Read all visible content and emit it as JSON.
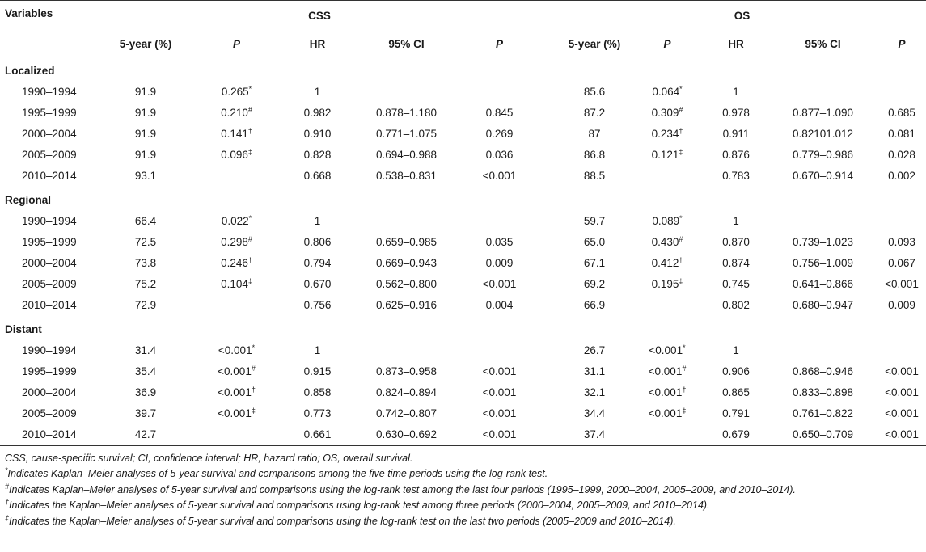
{
  "headers": {
    "variables": "Variables",
    "css_group": "CSS",
    "os_group": "OS",
    "five_year": "5-year (%)",
    "p": "P",
    "hr": "HR",
    "ci": "95% CI"
  },
  "sections": [
    {
      "name": "Localized",
      "rows": [
        {
          "period": "1990–1994",
          "css5": "91.9",
          "cssp": "0.265",
          "cssp_mark": "*",
          "hr": "1",
          "ci": "",
          "p": "",
          "os5": "85.6",
          "osp": "0.064",
          "osp_mark": "*",
          "ohr": "1",
          "oci": "",
          "op": ""
        },
        {
          "period": "1995–1999",
          "css5": "91.9",
          "cssp": "0.210",
          "cssp_mark": "#",
          "hr": "0.982",
          "ci": "0.878–1.180",
          "p": "0.845",
          "os5": "87.2",
          "osp": "0.309",
          "osp_mark": "#",
          "ohr": "0.978",
          "oci": "0.877–1.090",
          "op": "0.685"
        },
        {
          "period": "2000–2004",
          "css5": "91.9",
          "cssp": "0.141",
          "cssp_mark": "†",
          "hr": "0.910",
          "ci": "0.771–1.075",
          "p": "0.269",
          "os5": "87",
          "osp": "0.234",
          "osp_mark": "†",
          "ohr": "0.911",
          "oci": "0.82101.012",
          "op": "0.081"
        },
        {
          "period": "2005–2009",
          "css5": "91.9",
          "cssp": "0.096",
          "cssp_mark": "‡",
          "hr": "0.828",
          "ci": "0.694–0.988",
          "p": "0.036",
          "os5": "86.8",
          "osp": "0.121",
          "osp_mark": "‡",
          "ohr": "0.876",
          "oci": "0.779–0.986",
          "op": "0.028"
        },
        {
          "period": "2010–2014",
          "css5": "93.1",
          "cssp": "",
          "cssp_mark": "",
          "hr": "0.668",
          "ci": "0.538–0.831",
          "p": "<0.001",
          "os5": "88.5",
          "osp": "",
          "osp_mark": "",
          "ohr": "0.783",
          "oci": "0.670–0.914",
          "op": "0.002"
        }
      ]
    },
    {
      "name": "Regional",
      "rows": [
        {
          "period": "1990–1994",
          "css5": "66.4",
          "cssp": "0.022",
          "cssp_mark": "*",
          "hr": "1",
          "ci": "",
          "p": "",
          "os5": "59.7",
          "osp": "0.089",
          "osp_mark": "*",
          "ohr": "1",
          "oci": "",
          "op": ""
        },
        {
          "period": "1995–1999",
          "css5": "72.5",
          "cssp": "0.298",
          "cssp_mark": "#",
          "hr": "0.806",
          "ci": "0.659–0.985",
          "p": "0.035",
          "os5": "65.0",
          "osp": "0.430",
          "osp_mark": "#",
          "ohr": "0.870",
          "oci": "0.739–1.023",
          "op": "0.093"
        },
        {
          "period": "2000–2004",
          "css5": "73.8",
          "cssp": "0.246",
          "cssp_mark": "†",
          "hr": "0.794",
          "ci": "0.669–0.943",
          "p": "0.009",
          "os5": "67.1",
          "osp": "0.412",
          "osp_mark": "†",
          "ohr": "0.874",
          "oci": "0.756–1.009",
          "op": "0.067"
        },
        {
          "period": "2005–2009",
          "css5": "75.2",
          "cssp": "0.104",
          "cssp_mark": "‡",
          "hr": "0.670",
          "ci": "0.562–0.800",
          "p": "<0.001",
          "os5": "69.2",
          "osp": "0.195",
          "osp_mark": "‡",
          "ohr": "0.745",
          "oci": "0.641–0.866",
          "op": "<0.001"
        },
        {
          "period": "2010–2014",
          "css5": "72.9",
          "cssp": "",
          "cssp_mark": "",
          "hr": "0.756",
          "ci": "0.625–0.916",
          "p": "0.004",
          "os5": "66.9",
          "osp": "",
          "osp_mark": "",
          "ohr": "0.802",
          "oci": "0.680–0.947",
          "op": "0.009"
        }
      ]
    },
    {
      "name": "Distant",
      "rows": [
        {
          "period": "1990–1994",
          "css5": "31.4",
          "cssp": "<0.001",
          "cssp_mark": "*",
          "hr": "1",
          "ci": "",
          "p": "",
          "os5": "26.7",
          "osp": "<0.001",
          "osp_mark": "*",
          "ohr": "1",
          "oci": "",
          "op": ""
        },
        {
          "period": "1995–1999",
          "css5": "35.4",
          "cssp": "<0.001",
          "cssp_mark": "#",
          "hr": "0.915",
          "ci": "0.873–0.958",
          "p": "<0.001",
          "os5": "31.1",
          "osp": "<0.001",
          "osp_mark": "#",
          "ohr": "0.906",
          "oci": "0.868–0.946",
          "op": "<0.001"
        },
        {
          "period": "2000–2004",
          "css5": "36.9",
          "cssp": "<0.001",
          "cssp_mark": "†",
          "hr": "0.858",
          "ci": "0.824–0.894",
          "p": "<0.001",
          "os5": "32.1",
          "osp": "<0.001",
          "osp_mark": "†",
          "ohr": "0.865",
          "oci": "0.833–0.898",
          "op": "<0.001"
        },
        {
          "period": "2005–2009",
          "css5": "39.7",
          "cssp": "<0.001",
          "cssp_mark": "‡",
          "hr": "0.773",
          "ci": "0.742–0.807",
          "p": "<0.001",
          "os5": "34.4",
          "osp": "<0.001",
          "osp_mark": "‡",
          "ohr": "0.791",
          "oci": "0.761–0.822",
          "op": "<0.001"
        },
        {
          "period": "2010–2014",
          "css5": "42.7",
          "cssp": "",
          "cssp_mark": "",
          "hr": "0.661",
          "ci": "0.630–0.692",
          "p": "<0.001",
          "os5": "37.4",
          "osp": "",
          "osp_mark": "",
          "ohr": "0.679",
          "oci": "0.650–0.709",
          "op": "<0.001"
        }
      ]
    }
  ],
  "footnotes": {
    "abbrev": "CSS, cause-specific survival; CI, confidence interval; HR, hazard ratio; OS, overall survival.",
    "star_mark": "*",
    "star": "Indicates Kaplan–Meier analyses of 5-year survival and comparisons among the five time periods using the log-rank test.",
    "hash_mark": "#",
    "hash": "Indicates Kaplan–Meier analyses of 5-year survival and comparisons using the log-rank test among the last four periods (1995–1999, 2000–2004, 2005–2009, and 2010–2014).",
    "dagger_mark": "†",
    "dagger": "Indicates the Kaplan–Meier analyses of 5-year survival and comparisons using log-rank test among three periods (2000–2004, 2005–2009, and 2010–2014).",
    "ddagger_mark": "‡",
    "ddagger": "Indicates the Kaplan–Meier analyses of 5-year survival and comparisons using the log-rank test on the last two periods (2005–2009 and 2010–2014)."
  }
}
